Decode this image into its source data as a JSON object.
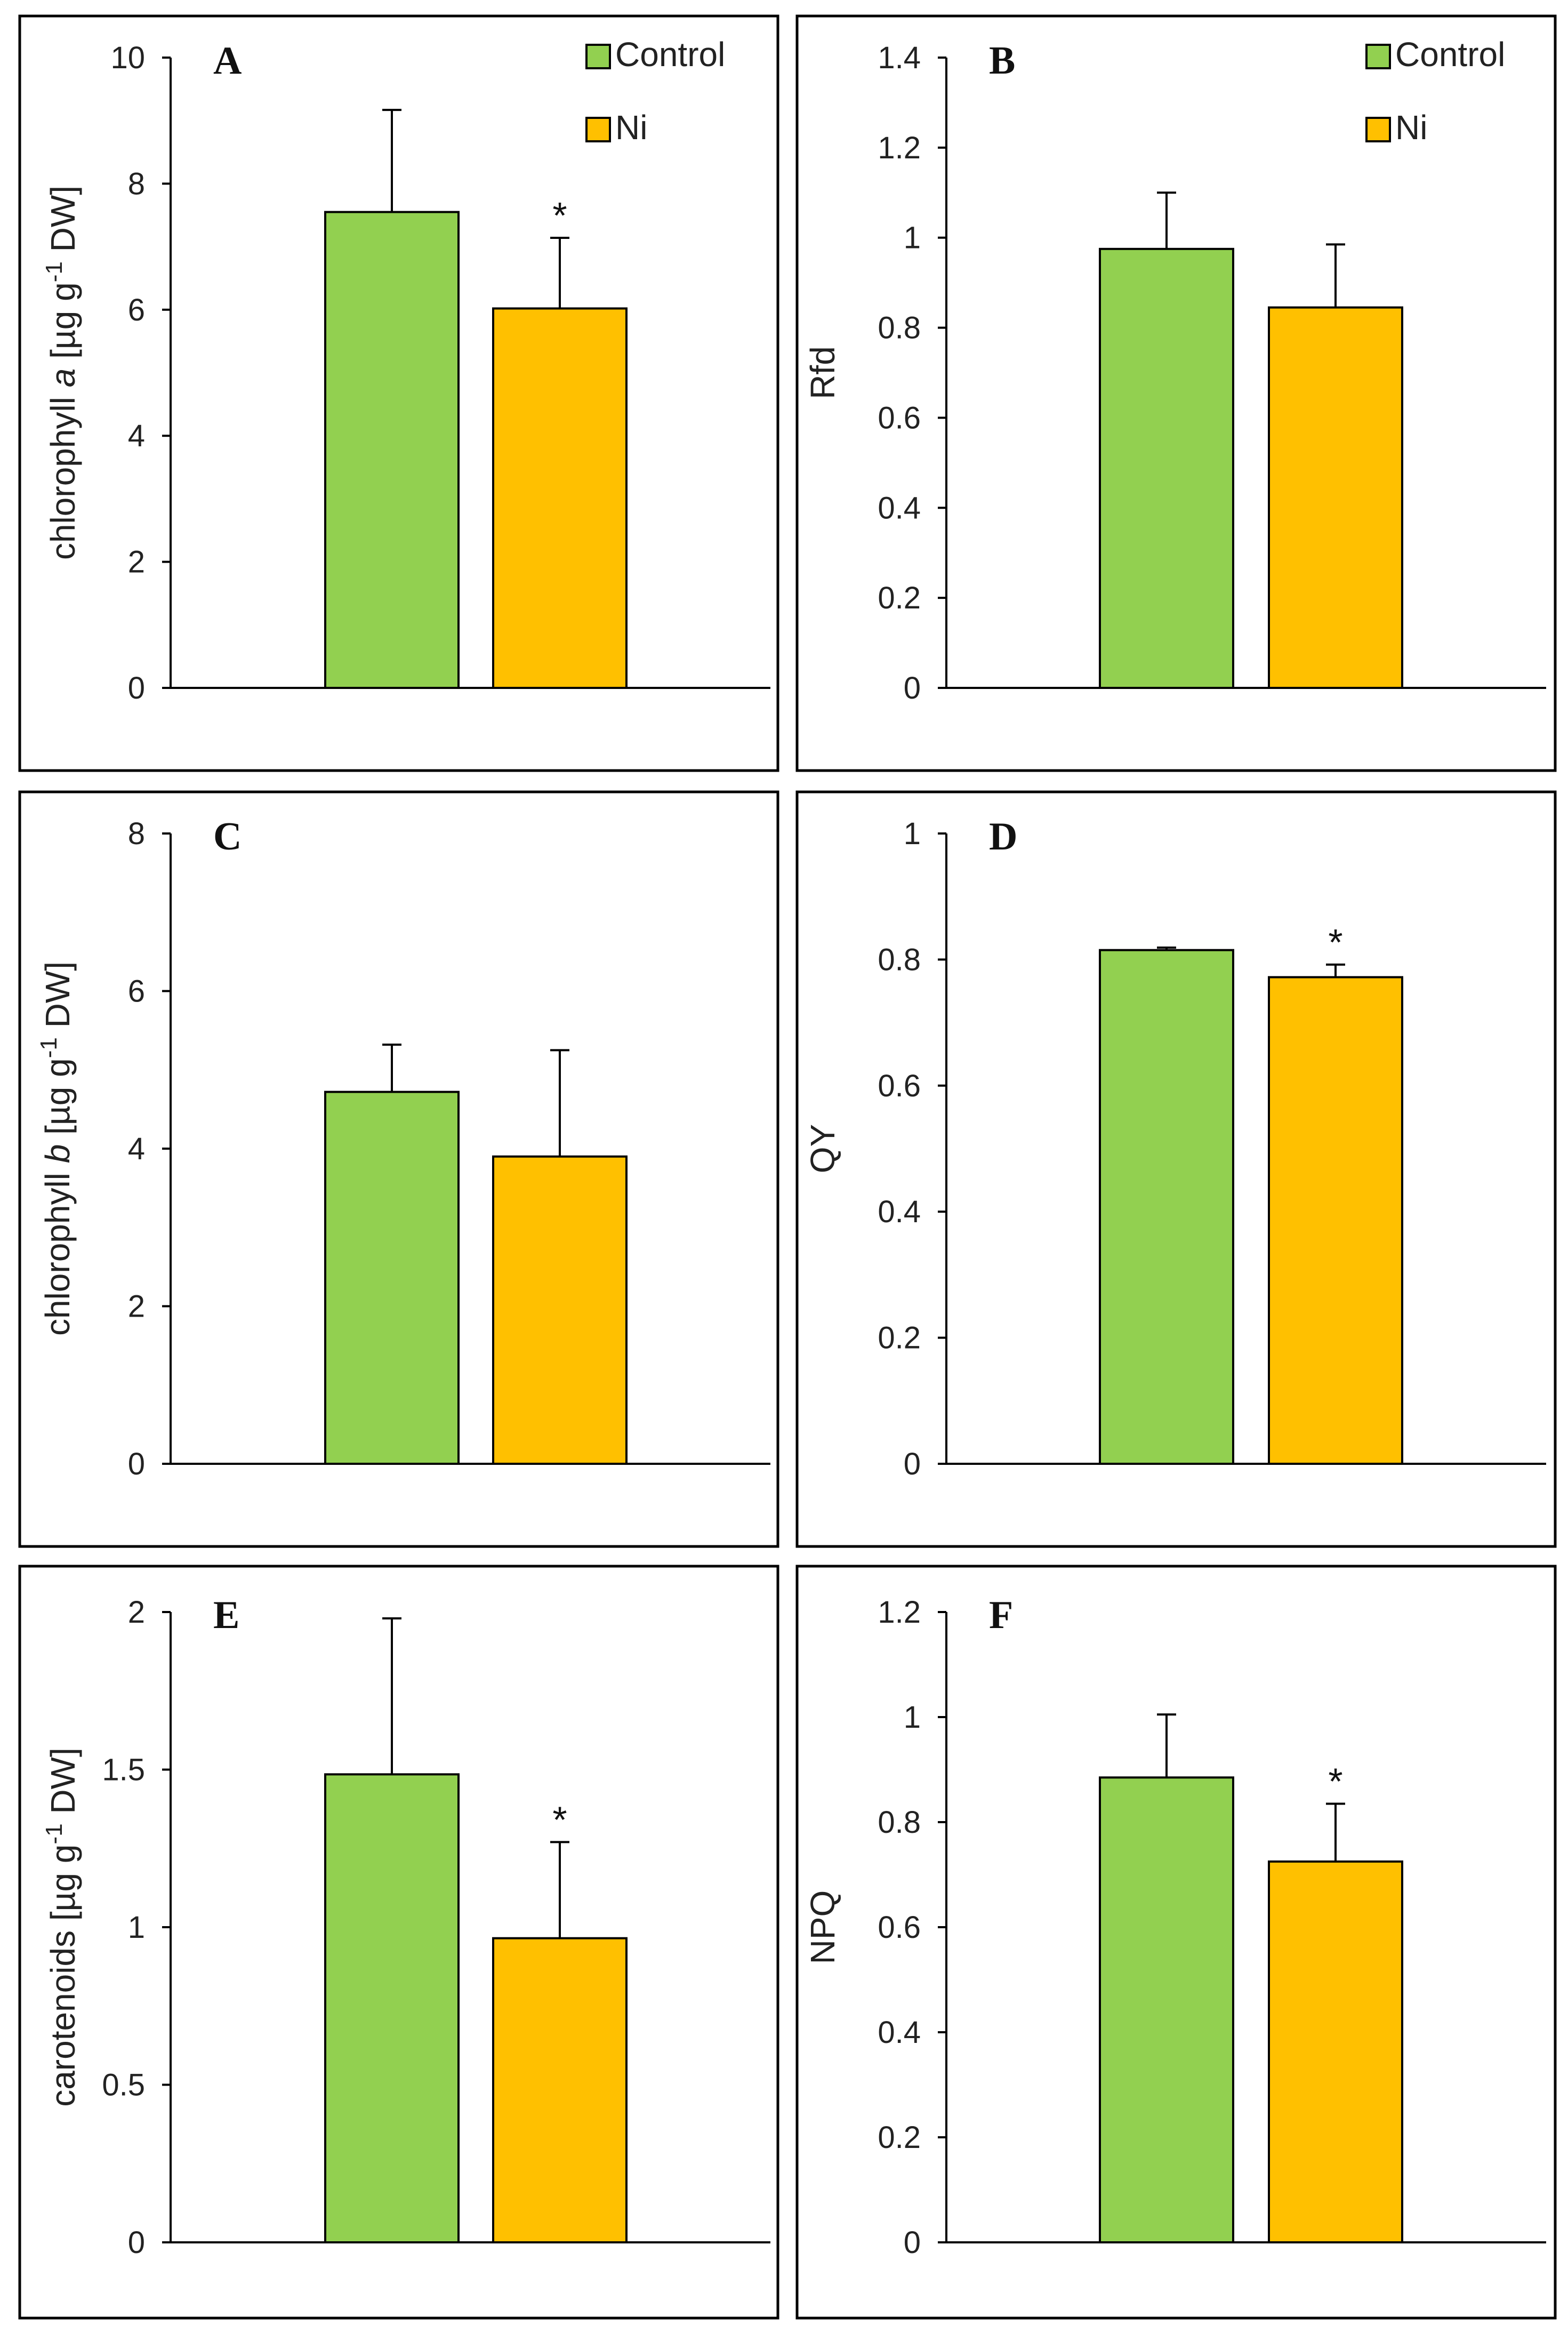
{
  "colors": {
    "control": "#92D050",
    "ni": "#FFC000",
    "axis": "#000000",
    "frame": "#000000"
  },
  "chart_data": [
    {
      "panel": "A",
      "type": "bar",
      "ylabel": {
        "prefix": "chlorophyll ",
        "italic": "a",
        "unit_pre": " [µg g",
        "sup": "-1",
        "unit_post": " DW]"
      },
      "categories": [
        "Control",
        "Ni"
      ],
      "values": [
        7.55,
        6.02
      ],
      "errors": [
        1.62,
        1.12
      ],
      "significance": [
        "",
        "*"
      ],
      "ylim": [
        0,
        10
      ],
      "yticks": [
        0,
        2,
        4,
        6,
        8,
        10
      ],
      "tick_labels": [
        "0",
        "2",
        "4",
        "6",
        "8",
        "10"
      ],
      "legend": [
        "Control",
        "Ni"
      ]
    },
    {
      "panel": "B",
      "type": "bar",
      "ylabel": {
        "prefix": "Rfd"
      },
      "categories": [
        "Control",
        "Ni"
      ],
      "values": [
        0.975,
        0.845
      ],
      "errors": [
        0.125,
        0.14
      ],
      "significance": [
        "",
        ""
      ],
      "ylim": [
        0,
        1.4
      ],
      "yticks": [
        0,
        0.2,
        0.4,
        0.6,
        0.8,
        1,
        1.2,
        1.4
      ],
      "tick_labels": [
        "0",
        "0.2",
        "0.4",
        "0.6",
        "0.8",
        "1",
        "1.2",
        "1.4"
      ],
      "legend": [
        "Control",
        "Ni"
      ]
    },
    {
      "panel": "C",
      "type": "bar",
      "ylabel": {
        "prefix": "chlorophyll ",
        "italic": "b",
        "unit_pre": " [µg g",
        "sup": "-1",
        "unit_post": " DW]"
      },
      "categories": [
        "Control",
        "Ni"
      ],
      "values": [
        4.72,
        3.9
      ],
      "errors": [
        0.6,
        1.35
      ],
      "significance": [
        "",
        ""
      ],
      "ylim": [
        0,
        8
      ],
      "yticks": [
        0,
        2,
        4,
        6,
        8
      ],
      "tick_labels": [
        "0",
        "2",
        "4",
        "6",
        "8"
      ],
      "legend": []
    },
    {
      "panel": "D",
      "type": "bar",
      "ylabel": {
        "prefix": "QY"
      },
      "categories": [
        "Control",
        "Ni"
      ],
      "values": [
        0.815,
        0.772
      ],
      "errors": [
        0.004,
        0.02
      ],
      "significance": [
        "",
        "*"
      ],
      "ylim": [
        0,
        1
      ],
      "yticks": [
        0,
        0.2,
        0.4,
        0.6,
        0.8,
        1
      ],
      "tick_labels": [
        "0",
        "0.2",
        "0.4",
        "0.6",
        "0.8",
        "1"
      ],
      "legend": []
    },
    {
      "panel": "E",
      "type": "bar",
      "ylabel": {
        "prefix": "carotenoids",
        "unit_pre": " [µg g",
        "sup": "-1",
        "unit_post": " DW]"
      },
      "categories": [
        "Control",
        "Ni"
      ],
      "values": [
        1.485,
        0.965
      ],
      "errors": [
        0.495,
        0.305
      ],
      "significance": [
        "",
        "*"
      ],
      "ylim": [
        0,
        2
      ],
      "yticks": [
        0,
        0.5,
        1,
        1.5,
        2
      ],
      "tick_labels": [
        "0",
        "0.5",
        "1",
        "1.5",
        "2"
      ],
      "legend": []
    },
    {
      "panel": "F",
      "type": "bar",
      "ylabel": {
        "prefix": "NPQ"
      },
      "categories": [
        "Control",
        "Ni"
      ],
      "values": [
        0.885,
        0.725
      ],
      "errors": [
        0.12,
        0.11
      ],
      "significance": [
        "",
        "*"
      ],
      "ylim": [
        0,
        1.2
      ],
      "yticks": [
        0,
        0.2,
        0.4,
        0.6,
        0.8,
        1,
        1.2
      ],
      "tick_labels": [
        "0",
        "0.2",
        "0.4",
        "0.6",
        "0.8",
        "1",
        "1.2"
      ],
      "legend": []
    }
  ]
}
